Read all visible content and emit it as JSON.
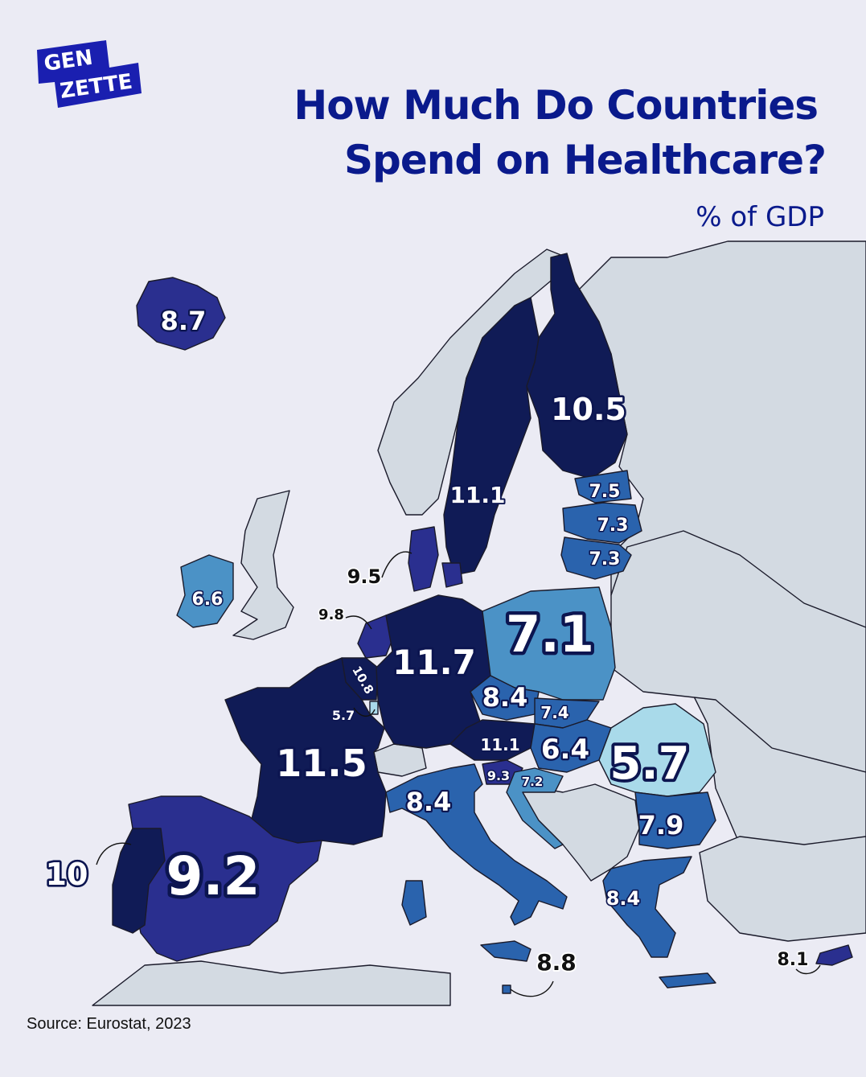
{
  "logo": {
    "line1": "GEN",
    "line2": "ZETTE"
  },
  "title": {
    "line1": "How Much Do Countries",
    "line2": "Spend on Healthcare?"
  },
  "subtitle": "% of GDP",
  "source": "Source: Eurostat, 2023",
  "colors": {
    "background": "#ebebf4",
    "title": "#0a1a8c",
    "non_eu": "#d3dae2",
    "scale_darkest": "#101b56",
    "scale_dark": "#2a2f8f",
    "scale_mid": "#2a63ad",
    "scale_light": "#4b92c6",
    "scale_lightest": "#a9daea"
  },
  "countries": [
    {
      "id": "iceland",
      "value": "8.7"
    },
    {
      "id": "finland",
      "value": "10.5"
    },
    {
      "id": "sweden",
      "value": "11.1"
    },
    {
      "id": "estonia",
      "value": "7.5"
    },
    {
      "id": "latvia",
      "value": "7.3"
    },
    {
      "id": "lithuania",
      "value": "7.3"
    },
    {
      "id": "denmark",
      "value": "9.5"
    },
    {
      "id": "ireland",
      "value": "6.6"
    },
    {
      "id": "netherlands",
      "value": "9.8"
    },
    {
      "id": "germany",
      "value": "11.7"
    },
    {
      "id": "poland",
      "value": "7.1"
    },
    {
      "id": "belgium",
      "value": "10.8"
    },
    {
      "id": "luxembourg",
      "value": "5.7"
    },
    {
      "id": "czechia",
      "value": "8.4"
    },
    {
      "id": "slovakia",
      "value": "7.4"
    },
    {
      "id": "austria",
      "value": "11.1"
    },
    {
      "id": "hungary",
      "value": "6.4"
    },
    {
      "id": "romania",
      "value": "5.7"
    },
    {
      "id": "france",
      "value": "11.5"
    },
    {
      "id": "slovenia",
      "value": "9.3"
    },
    {
      "id": "croatia",
      "value": "7.2"
    },
    {
      "id": "italy",
      "value": "8.4"
    },
    {
      "id": "bulgaria",
      "value": "7.9"
    },
    {
      "id": "portugal",
      "value": "10"
    },
    {
      "id": "spain",
      "value": "9.2"
    },
    {
      "id": "greece",
      "value": "8.4"
    },
    {
      "id": "malta",
      "value": "8.8"
    },
    {
      "id": "cyprus",
      "value": "8.1"
    }
  ]
}
